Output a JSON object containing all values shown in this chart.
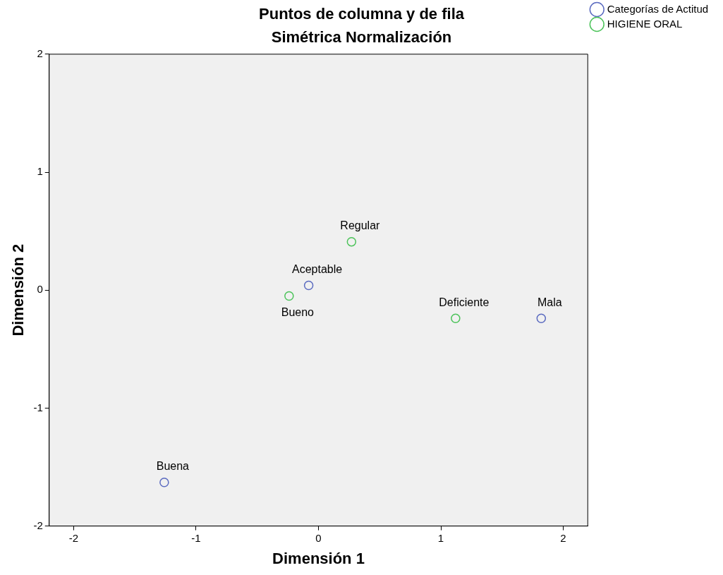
{
  "chart_data": {
    "type": "scatter",
    "title": "Puntos de columna y de fila",
    "subtitle": "Simétrica Normalización",
    "xlabel": "Dimensión 1",
    "ylabel": "Dimensión 2",
    "xlim": [
      -2.2,
      2.2
    ],
    "ylim": [
      -2,
      2
    ],
    "xticks": [
      -2,
      -1,
      0,
      1,
      2
    ],
    "yticks": [
      -2,
      -1,
      0,
      1,
      2
    ],
    "grid": false,
    "legend": "top right",
    "marker": "circle",
    "series": [
      {
        "name": "Categorías de Actitud",
        "color": "#5b6bc0",
        "x": [
          -0.08,
          1.82,
          -1.26
        ],
        "values": [
          0.04,
          -0.24,
          -1.63
        ]
      },
      {
        "name": "HIGIENE ORAL",
        "color": "#4cc35a",
        "x": [
          0.27,
          -0.24,
          1.12
        ],
        "values": [
          0.41,
          -0.05,
          -0.24
        ]
      }
    ],
    "annotations": [
      {
        "text": "Aceptable",
        "x": -0.08,
        "y": 0.04
      },
      {
        "text": "Mala",
        "x": 1.82,
        "y": -0.24
      },
      {
        "text": "Buena",
        "x": -1.26,
        "y": -1.63
      },
      {
        "text": "Regular",
        "x": 0.27,
        "y": 0.41
      },
      {
        "text": "Bueno",
        "x": -0.24,
        "y": -0.05
      },
      {
        "text": "Deficiente",
        "x": 1.12,
        "y": -0.24
      }
    ]
  }
}
